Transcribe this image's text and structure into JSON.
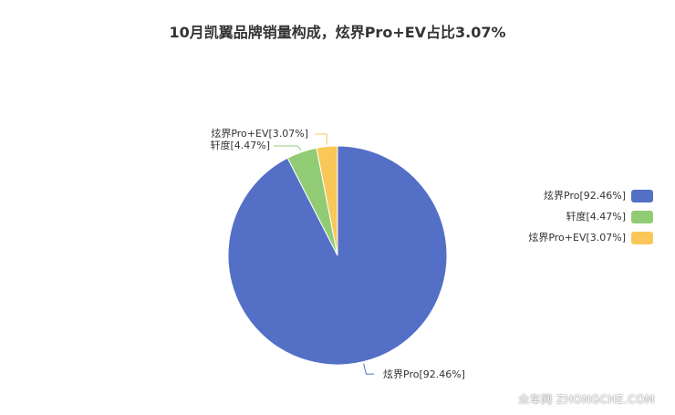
{
  "chart_data": {
    "type": "pie",
    "title": "10月凯翼品牌销量构成，炫界Pro+EV占比3.07%",
    "slices": [
      {
        "name": "炫界Pro",
        "value": 92.46,
        "label": "炫界Pro[92.46%]",
        "color": "#5470c6"
      },
      {
        "name": "轩度",
        "value": 4.47,
        "label": "轩度[4.47%]",
        "color": "#91cc75"
      },
      {
        "name": "炫界Pro+EV",
        "value": 3.07,
        "label": "炫界Pro+EV[3.07%]",
        "color": "#fac858"
      }
    ],
    "legend_position": "right"
  },
  "watermark": "众车网 ZHONGCHE.COM"
}
